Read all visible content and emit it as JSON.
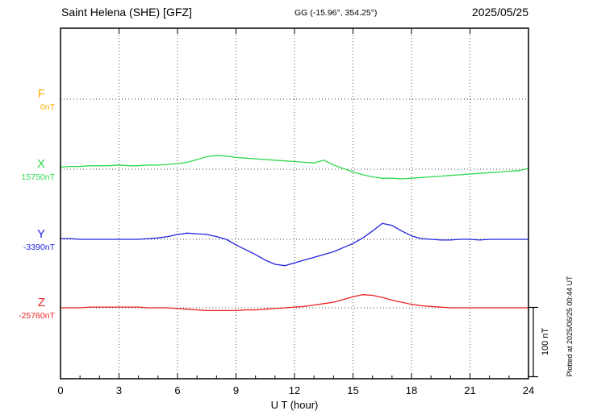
{
  "header": {
    "station": "Saint Helena (SHE)  [GFZ]",
    "coords": "GG (-15.96°, 354.25°)",
    "date": "2025/05/25"
  },
  "axis": {
    "xlabel": "U T (hour)",
    "x_ticks": [
      0,
      3,
      6,
      9,
      12,
      15,
      18,
      21,
      24
    ],
    "x_minor_step_hours": 1
  },
  "scale_bar": {
    "label": "100 nT",
    "nT": 100
  },
  "plotted_at": "Plotted at 2025/06/25 00:44 UT",
  "chart_data": {
    "type": "line",
    "title": "Saint Helena (SHE) magnetogram 2025/05/25",
    "xlabel": "U T (hour)",
    "x_start": 0,
    "x_end": 24,
    "sample_interval_hours": 0.5,
    "scale_nT_per_div": 100,
    "series": [
      {
        "name": "F",
        "base_label": "0nT",
        "base_nT": 0,
        "color": "#ffaa00",
        "values_nT": []
      },
      {
        "name": "X",
        "base_label": "15750nT",
        "base_nT": 15750,
        "color": "#2ed84f",
        "values_nT": [
          3,
          4,
          4,
          5,
          5,
          5,
          6,
          5,
          5,
          6,
          6,
          7,
          8,
          10,
          14,
          18,
          20,
          19,
          17,
          16,
          15,
          14,
          13,
          12,
          11,
          10,
          9,
          13,
          6,
          1,
          -4,
          -8,
          -11,
          -13,
          -13,
          -14,
          -13,
          -12,
          -11,
          -10,
          -9,
          -8,
          -7,
          -6,
          -5,
          -4,
          -3,
          -2,
          1
        ]
      },
      {
        "name": "Y",
        "base_label": "-3390nT",
        "base_nT": -3390,
        "color": "#2222dd",
        "values_nT": [
          1,
          1,
          0,
          0,
          0,
          0,
          0,
          0,
          0,
          1,
          2,
          4,
          7,
          9,
          8,
          7,
          4,
          0,
          -8,
          -15,
          -22,
          -30,
          -36,
          -38,
          -34,
          -30,
          -26,
          -22,
          -18,
          -12,
          -6,
          2,
          12,
          23,
          20,
          12,
          5,
          1,
          0,
          -1,
          -1,
          0,
          0,
          -1,
          0,
          0,
          0,
          0,
          0
        ]
      },
      {
        "name": "Z",
        "base_label": "-25760nT",
        "base_nT": -25760,
        "color": "#ee2222",
        "values_nT": [
          0,
          0,
          0,
          1,
          1,
          1,
          1,
          1,
          1,
          0,
          0,
          0,
          -1,
          -2,
          -3,
          -4,
          -4,
          -4,
          -4,
          -3,
          -3,
          -2,
          -1,
          0,
          1,
          2,
          4,
          6,
          8,
          12,
          16,
          19,
          18,
          15,
          11,
          8,
          5,
          3,
          2,
          1,
          0,
          0,
          0,
          0,
          0,
          0,
          0,
          0,
          0
        ]
      }
    ]
  }
}
